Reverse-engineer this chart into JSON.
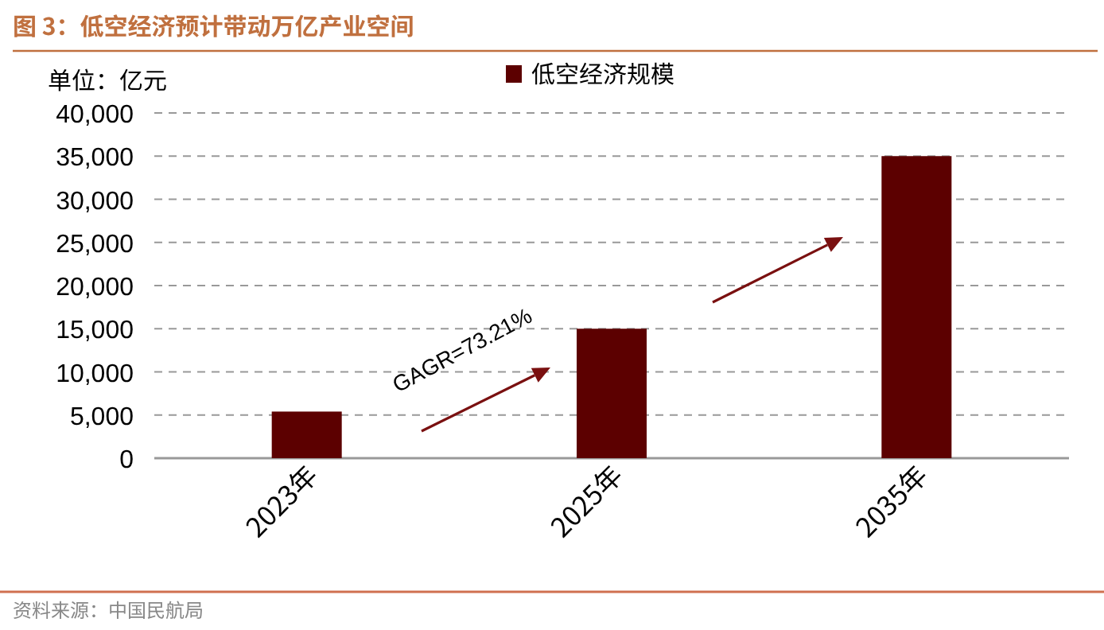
{
  "chart_data": {
    "type": "bar",
    "title": "图 3：低空经济预计带动万亿产业空间",
    "ylabel": "单位：亿元",
    "categories": [
      "2023年",
      "2025年",
      "2035年"
    ],
    "series": [
      {
        "name": "低空经济规模",
        "color": "#5c0000",
        "values": [
          5400,
          15000,
          35000
        ]
      }
    ],
    "ylim": [
      0,
      40000
    ],
    "yticks": [
      {
        "value": 0,
        "label": "0"
      },
      {
        "value": 5000,
        "label": "5,000"
      },
      {
        "value": 10000,
        "label": "10,000"
      },
      {
        "value": 15000,
        "label": "15,000"
      },
      {
        "value": 20000,
        "label": "20,000"
      },
      {
        "value": 25000,
        "label": "25,000"
      },
      {
        "value": 30000,
        "label": "30,000"
      },
      {
        "value": 35000,
        "label": "35,000"
      },
      {
        "value": 40000,
        "label": "40,000"
      }
    ],
    "grid": "y",
    "legend": "top",
    "annotations": [
      "GAGR=73.21%",
      "资料来源：中国民航局"
    ]
  }
}
